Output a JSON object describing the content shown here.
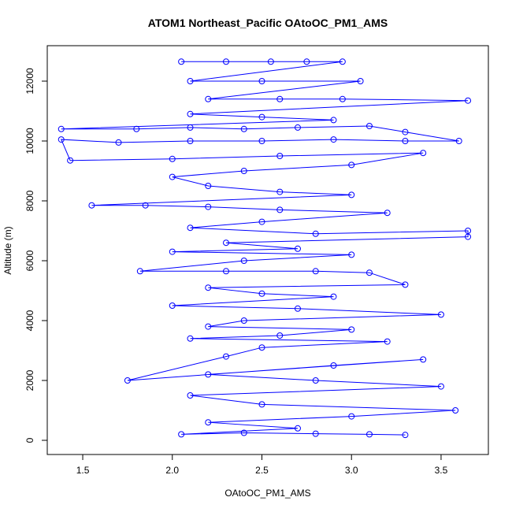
{
  "chart_data": {
    "type": "line",
    "marker": "circle",
    "title": "ATOM1 Northeast_Pacific OAtoOC_PM1_AMS",
    "x_label": "OAtoOC_PM1_AMS",
    "y_label": "Altitude (m)",
    "color": "#0000ff",
    "xlim": [
      1.302,
      3.764
    ],
    "ylim": [
      -474,
      13184
    ],
    "xticks": [
      1.5,
      {
        "value": 2,
        "label": "2.0"
      },
      2.5,
      {
        "value": 3,
        "label": "3.0"
      },
      3.5
    ],
    "yticks": [
      0,
      2000,
      4000,
      6000,
      8000,
      10000,
      12000
    ],
    "x": [
      2.05,
      2.3,
      2.55,
      2.75,
      2.95,
      2.1,
      2.5,
      3.05,
      2.2,
      2.6,
      2.95,
      3.65,
      2.1,
      2.5,
      2.9,
      1.38,
      1.8,
      2.1,
      2.4,
      2.7,
      3.1,
      3.3,
      3.6,
      3.3,
      2.9,
      2.5,
      2.1,
      1.7,
      1.38,
      1.43,
      2.0,
      2.6,
      3.4,
      3.0,
      2.4,
      2.0,
      2.2,
      2.6,
      3.0,
      1.55,
      1.85,
      2.2,
      2.6,
      3.2,
      2.5,
      2.1,
      2.8,
      3.65,
      3.65,
      2.3,
      2.7,
      2.0,
      3.0,
      2.4,
      1.82,
      2.3,
      2.8,
      3.1,
      3.3,
      2.2,
      2.5,
      2.9,
      2.0,
      2.7,
      3.5,
      2.4,
      2.2,
      3.0,
      2.6,
      2.1,
      3.2,
      2.5,
      2.3,
      1.75,
      2.9,
      3.4,
      2.2,
      2.8,
      3.5,
      2.1,
      2.5,
      3.58,
      3.0,
      2.2,
      2.7,
      2.05,
      2.4,
      2.8,
      3.1,
      3.3
    ],
    "values": [
      12650,
      12650,
      12650,
      12650,
      12650,
      12000,
      12000,
      12000,
      11400,
      11400,
      11400,
      11350,
      10900,
      10800,
      10700,
      10400,
      10400,
      10450,
      10400,
      10450,
      10500,
      10300,
      10000,
      10000,
      10050,
      10000,
      10000,
      9950,
      10050,
      9350,
      9400,
      9500,
      9600,
      9200,
      9000,
      8800,
      8500,
      8300,
      8200,
      7850,
      7850,
      7800,
      7700,
      7600,
      7300,
      7100,
      6900,
      7000,
      6800,
      6600,
      6400,
      6300,
      6200,
      6000,
      5650,
      5650,
      5650,
      5600,
      5200,
      5100,
      4900,
      4800,
      4500,
      4400,
      4200,
      4000,
      3800,
      3700,
      3500,
      3400,
      3300,
      3100,
      2800,
      2000,
      2500,
      2700,
      2200,
      2000,
      1800,
      1500,
      1200,
      1000,
      800,
      600,
      400,
      200,
      250,
      220,
      200,
      180
    ]
  }
}
